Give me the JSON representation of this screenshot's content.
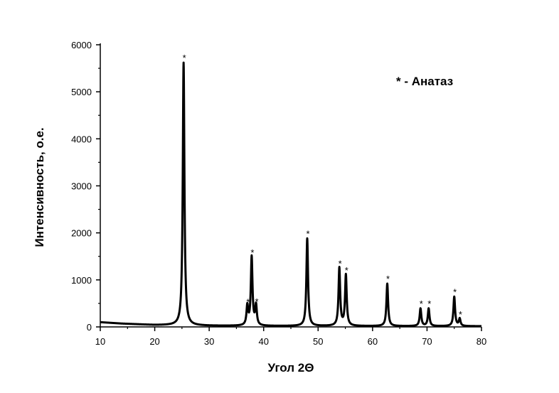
{
  "chart_data": {
    "type": "line",
    "xlabel": "Угол 2Θ",
    "ylabel": "Интенсивность, о.е.",
    "xlim": [
      10,
      80
    ],
    "ylim": [
      0,
      6000
    ],
    "x_ticks": [
      10,
      20,
      30,
      40,
      50,
      60,
      70,
      80
    ],
    "y_ticks": [
      0,
      1000,
      2000,
      3000,
      4000,
      5000,
      6000
    ],
    "grid": false,
    "legend": {
      "text": "* - Анатаз",
      "placement": "top-right"
    },
    "series": [
      {
        "color": "#000000",
        "baseline": [
          [
            10,
            100
          ],
          [
            14,
            70
          ],
          [
            20,
            40
          ],
          [
            30,
            25
          ],
          [
            40,
            20
          ],
          [
            80,
            15
          ]
        ],
        "peaks": [
          {
            "x": 25.3,
            "y": 5620,
            "mark": "*"
          },
          {
            "x": 37.0,
            "y": 430,
            "mark": "*"
          },
          {
            "x": 37.8,
            "y": 1480,
            "mark": "*"
          },
          {
            "x": 38.6,
            "y": 440,
            "mark": "*"
          },
          {
            "x": 48.0,
            "y": 1880,
            "mark": "*"
          },
          {
            "x": 53.9,
            "y": 1250,
            "mark": "*"
          },
          {
            "x": 55.1,
            "y": 1100,
            "mark": "*"
          },
          {
            "x": 62.7,
            "y": 920,
            "mark": "*"
          },
          {
            "x": 68.8,
            "y": 390,
            "mark": "*"
          },
          {
            "x": 70.3,
            "y": 390,
            "mark": "*"
          },
          {
            "x": 75.0,
            "y": 640,
            "mark": "*"
          },
          {
            "x": 76.0,
            "y": 170,
            "mark": "*"
          }
        ]
      }
    ]
  }
}
